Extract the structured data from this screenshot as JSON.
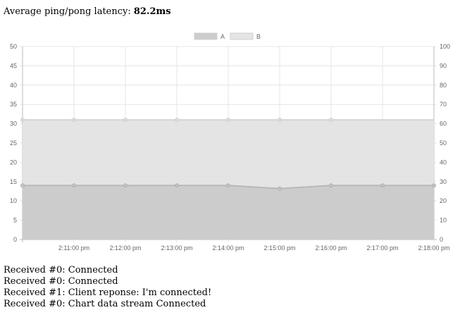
{
  "latency": {
    "label": "Average ping/pong latency:",
    "value": "82.2ms"
  },
  "chart_data": {
    "type": "area",
    "x": [
      "",
      "2:11:00 pm",
      "2:12:00 pm",
      "2:13:00 pm",
      "2:14:00 pm",
      "2:15:00 pm",
      "2:16:00 pm",
      "2:17:00 pm",
      "2:18:00 pm"
    ],
    "series": [
      {
        "name": "A",
        "axis": "left",
        "values": [
          14,
          14,
          14,
          14,
          14,
          13.2,
          14,
          14,
          14
        ],
        "color": "#cccccc"
      },
      {
        "name": "B",
        "axis": "right",
        "values": [
          62,
          62,
          62,
          62,
          62,
          62,
          62,
          null,
          null
        ],
        "color": "#e4e4e4"
      }
    ],
    "left_axis": {
      "ylim": [
        0,
        50
      ],
      "ticks": [
        "0",
        "5",
        "10",
        "15",
        "20",
        "25",
        "30",
        "35",
        "40",
        "45",
        "50"
      ]
    },
    "right_axis": {
      "ylim": [
        0,
        100
      ],
      "ticks": [
        "0",
        "10",
        "20",
        "30",
        "40",
        "50",
        "60",
        "70",
        "80",
        "90",
        "100"
      ]
    },
    "grid": true,
    "legend": "top-center"
  },
  "messages": [
    "Received #0: Connected",
    "Received #0: Connected",
    "Received #1: Client reponse: I'm connected!",
    "Received #0: Chart data stream Connected"
  ]
}
